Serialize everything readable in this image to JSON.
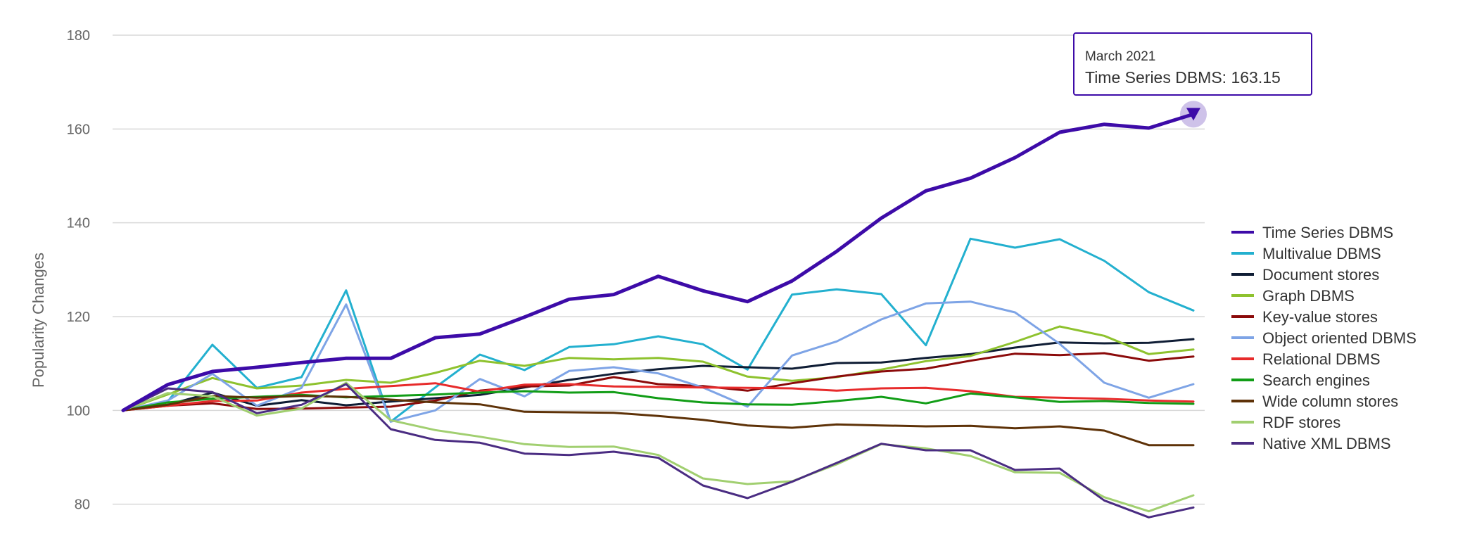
{
  "chart_data": {
    "type": "line",
    "title": "",
    "ylabel": "Popularity Changes",
    "xlabel": "",
    "ylim": [
      75,
      180
    ],
    "yticks": [
      80,
      100,
      120,
      140,
      160,
      180
    ],
    "grid": true,
    "legend_position": "right",
    "series": [
      {
        "name": "Time Series DBMS",
        "color": "#3D0BA8",
        "emphasized": true,
        "values": [
          100,
          105.5,
          108.3,
          109.2,
          110.2,
          111.1,
          111.1,
          115.5,
          116.3,
          119.9,
          123.7,
          124.7,
          128.6,
          125.5,
          123.2,
          127.6,
          133.9,
          141.0,
          146.8,
          149.5,
          153.9,
          159.3,
          161.0,
          160.2,
          163.15
        ]
      },
      {
        "name": "Multivalue DBMS",
        "color": "#23B0CF",
        "values": [
          100,
          101.9,
          114.0,
          104.8,
          107.1,
          125.6,
          97.6,
          104.9,
          111.9,
          108.6,
          113.5,
          114.1,
          115.8,
          114.1,
          108.7,
          124.7,
          125.8,
          124.8,
          113.9,
          136.6,
          134.7,
          136.5,
          131.9,
          125.2,
          121.3
        ]
      },
      {
        "name": "Document stores",
        "color": "#0F1D35",
        "values": [
          100,
          101.2,
          103.8,
          101.0,
          102.2,
          101.1,
          101.9,
          102.6,
          103.3,
          104.9,
          106.5,
          107.8,
          108.8,
          109.5,
          109.2,
          108.9,
          110.1,
          110.2,
          111.2,
          112.0,
          113.4,
          114.5,
          114.3,
          114.4,
          115.2
        ]
      },
      {
        "name": "Graph DBMS",
        "color": "#8EC22E",
        "values": [
          100,
          103.4,
          106.9,
          104.7,
          105.3,
          106.5,
          105.9,
          108.0,
          110.6,
          109.5,
          111.2,
          110.9,
          111.2,
          110.4,
          107.2,
          106.3,
          107.1,
          108.7,
          110.5,
          111.6,
          114.6,
          117.9,
          115.9,
          112.0,
          113.0
        ]
      },
      {
        "name": "Key-value stores",
        "color": "#8B0A0A",
        "values": [
          100,
          101.0,
          101.5,
          100.3,
          100.4,
          100.6,
          100.8,
          102.1,
          104.2,
          105.1,
          105.3,
          107.1,
          105.6,
          105.2,
          104.2,
          105.8,
          107.2,
          108.3,
          108.9,
          110.6,
          112.1,
          111.8,
          112.2,
          110.6,
          111.5
        ]
      },
      {
        "name": "Object oriented DBMS",
        "color": "#7EA4E6",
        "values": [
          100,
          102.1,
          107.8,
          101.0,
          104.8,
          122.6,
          97.6,
          100.0,
          106.7,
          103.0,
          108.4,
          109.2,
          107.9,
          104.9,
          100.8,
          111.7,
          114.7,
          119.4,
          122.8,
          123.2,
          120.9,
          114.2,
          105.9,
          102.7,
          105.6
        ]
      },
      {
        "name": "Relational DBMS",
        "color": "#E72B2B",
        "values": [
          100,
          101.0,
          102.0,
          102.1,
          103.8,
          104.6,
          105.2,
          105.8,
          104.0,
          105.5,
          105.6,
          105.1,
          105.0,
          104.9,
          104.8,
          104.7,
          104.2,
          104.7,
          104.8,
          104.1,
          102.9,
          102.7,
          102.5,
          102.1,
          101.9
        ]
      },
      {
        "name": "Search engines",
        "color": "#119D16",
        "values": [
          100,
          101.7,
          102.5,
          102.9,
          103.3,
          102.8,
          103.1,
          103.4,
          103.8,
          104.1,
          103.8,
          103.9,
          102.6,
          101.7,
          101.3,
          101.2,
          102.0,
          102.9,
          101.5,
          103.6,
          102.8,
          101.8,
          102.0,
          101.6,
          101.4
        ]
      },
      {
        "name": "Wide column stores",
        "color": "#5E3208",
        "values": [
          100,
          101.2,
          103.1,
          102.7,
          103.1,
          102.9,
          102.3,
          101.7,
          101.3,
          99.7,
          99.6,
          99.5,
          98.8,
          98.0,
          96.8,
          96.3,
          97.0,
          96.8,
          96.6,
          96.7,
          96.2,
          96.6,
          95.7,
          92.6,
          92.6
        ]
      },
      {
        "name": "RDF stores",
        "color": "#A1CF70",
        "values": [
          100,
          103.7,
          103.0,
          98.9,
          100.4,
          105.9,
          97.9,
          95.8,
          94.4,
          92.8,
          92.2,
          92.3,
          90.5,
          85.5,
          84.3,
          84.9,
          88.5,
          92.8,
          91.9,
          90.3,
          86.8,
          86.7,
          81.5,
          78.5,
          81.9
        ]
      },
      {
        "name": "Native XML DBMS",
        "color": "#4A2C82",
        "values": [
          100,
          104.7,
          103.9,
          99.4,
          101.2,
          105.6,
          96.0,
          93.7,
          93.1,
          90.8,
          90.5,
          91.2,
          89.9,
          84.0,
          81.3,
          84.8,
          88.8,
          92.9,
          91.5,
          91.5,
          87.3,
          87.6,
          80.8,
          77.2,
          79.3
        ]
      }
    ],
    "tooltip": {
      "date": "March 2021",
      "text": "Time Series DBMS: 163.15",
      "series_index": 0,
      "point_index": 24
    }
  }
}
